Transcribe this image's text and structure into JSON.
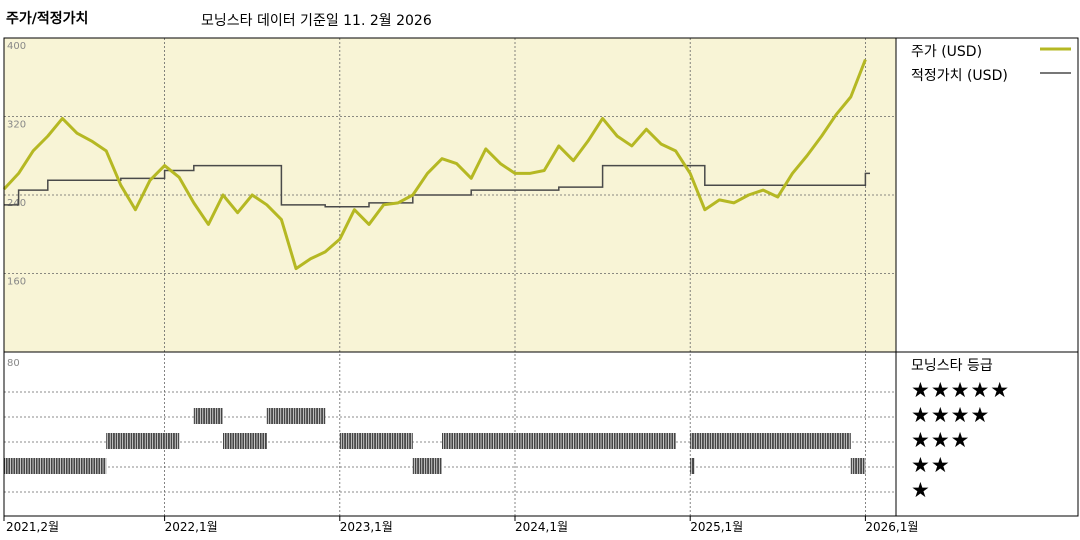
{
  "header": {
    "title": "주가/적정가치",
    "subtitle": "모닝스타 데이터 기준일 11. 2월 2026"
  },
  "legend": {
    "price": "주가 (USD)",
    "fair": "적정가치 (USD)",
    "price_color": "#b5b823",
    "fair_color": "#4a4a4a",
    "background_color": "#f8f4d6"
  },
  "rating_panel": {
    "title": "모닝스타 등급",
    "stars": [
      "★★★★★",
      "★★★★",
      "★★★",
      "★★",
      "★"
    ]
  },
  "chart_data": [
    {
      "type": "line",
      "y_ticks": [
        "400",
        "320",
        "240",
        "160"
      ],
      "ylim": [
        80,
        400
      ],
      "x_tick_labels": [
        "2021,2월",
        "2022,1월",
        "2023,1월",
        "2024,1월",
        "2025,1월",
        "2026,1월"
      ],
      "x_tick_dates": [
        "2021-02",
        "2022-01",
        "2023-01",
        "2024-01",
        "2025-01",
        "2026-01"
      ],
      "series": [
        {
          "name": "주가 (USD)",
          "points": [
            [
              "2021-02",
              246
            ],
            [
              "2021-03",
              262
            ],
            [
              "2021-04",
              285
            ],
            [
              "2021-05",
              300
            ],
            [
              "2021-06",
              318
            ],
            [
              "2021-07",
              303
            ],
            [
              "2021-08",
              295
            ],
            [
              "2021-09",
              285
            ],
            [
              "2021-10",
              250
            ],
            [
              "2021-11",
              225
            ],
            [
              "2021-12",
              255
            ],
            [
              "2022-01",
              270
            ],
            [
              "2022-02",
              258
            ],
            [
              "2022-03",
              232
            ],
            [
              "2022-04",
              210
            ],
            [
              "2022-05",
              240
            ],
            [
              "2022-06",
              222
            ],
            [
              "2022-07",
              240
            ],
            [
              "2022-08",
              230
            ],
            [
              "2022-09",
              215
            ],
            [
              "2022-10",
              165
            ],
            [
              "2022-11",
              175
            ],
            [
              "2022-12",
              182
            ],
            [
              "2023-01",
              195
            ],
            [
              "2023-02",
              225
            ],
            [
              "2023-03",
              210
            ],
            [
              "2023-04",
              230
            ],
            [
              "2023-05",
              232
            ],
            [
              "2023-06",
              240
            ],
            [
              "2023-07",
              262
            ],
            [
              "2023-08",
              277
            ],
            [
              "2023-09",
              272
            ],
            [
              "2023-10",
              257
            ],
            [
              "2023-11",
              287
            ],
            [
              "2023-12",
              272
            ],
            [
              "2024-01",
              262
            ],
            [
              "2024-02",
              262
            ],
            [
              "2024-03",
              265
            ],
            [
              "2024-04",
              290
            ],
            [
              "2024-05",
              275
            ],
            [
              "2024-06",
              295
            ],
            [
              "2024-07",
              318
            ],
            [
              "2024-08",
              300
            ],
            [
              "2024-09",
              290
            ],
            [
              "2024-10",
              307
            ],
            [
              "2024-11",
              292
            ],
            [
              "2024-12",
              285
            ],
            [
              "2025-01",
              262
            ],
            [
              "2025-02",
              225
            ],
            [
              "2025-03",
              235
            ],
            [
              "2025-04",
              232
            ],
            [
              "2025-05",
              240
            ],
            [
              "2025-06",
              245
            ],
            [
              "2025-07",
              238
            ],
            [
              "2025-08",
              262
            ],
            [
              "2025-09",
              280
            ],
            [
              "2025-10",
              300
            ],
            [
              "2025-11",
              322
            ],
            [
              "2025-12",
              340
            ],
            [
              "2026-01",
              378
            ]
          ]
        },
        {
          "name": "적정가치 (USD)",
          "points": [
            [
              "2021-02",
              230
            ],
            [
              "2021-03",
              245
            ],
            [
              "2021-05",
              255
            ],
            [
              "2021-10",
              257
            ],
            [
              "2022-01",
              265
            ],
            [
              "2022-03",
              270
            ],
            [
              "2022-09",
              230
            ],
            [
              "2022-12",
              228
            ],
            [
              "2023-03",
              232
            ],
            [
              "2023-06",
              240
            ],
            [
              "2023-10",
              245
            ],
            [
              "2024-01",
              245
            ],
            [
              "2024-04",
              248
            ],
            [
              "2024-07",
              270
            ],
            [
              "2024-12",
              270
            ],
            [
              "2025-02",
              250
            ],
            [
              "2025-12",
              250
            ],
            [
              "2026-01",
              262
            ]
          ]
        }
      ]
    },
    {
      "type": "timeline",
      "y_ticks": [
        "80"
      ],
      "rating_runs": [
        {
          "stars": 2,
          "from": "2021-02",
          "to": "2021-09"
        },
        {
          "stars": 3,
          "from": "2021-09",
          "to": "2022-02"
        },
        {
          "stars": 4,
          "from": "2022-03",
          "to": "2022-05"
        },
        {
          "stars": 3,
          "from": "2022-05",
          "to": "2022-08"
        },
        {
          "stars": 4,
          "from": "2022-08",
          "to": "2022-12"
        },
        {
          "stars": 3,
          "from": "2023-01",
          "to": "2023-06"
        },
        {
          "stars": 2,
          "from": "2023-06",
          "to": "2023-08"
        },
        {
          "stars": 3,
          "from": "2023-08",
          "to": "2024-12"
        },
        {
          "stars": 2,
          "from": "2025-01",
          "to": "2025-01"
        },
        {
          "stars": 3,
          "from": "2025-01",
          "to": "2025-12"
        },
        {
          "stars": 2,
          "from": "2025-12",
          "to": "2026-01"
        }
      ]
    }
  ]
}
